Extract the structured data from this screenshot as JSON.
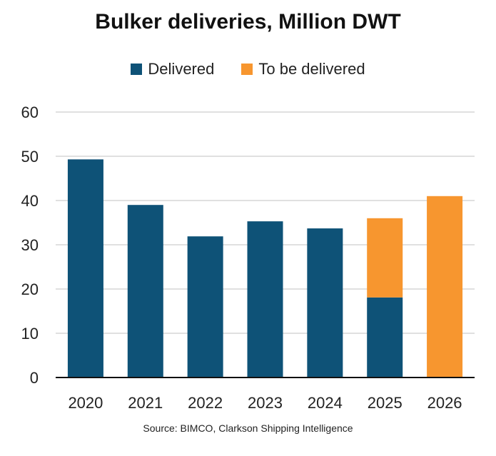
{
  "chart_data": {
    "type": "bar",
    "stacked": true,
    "title": "Bulker deliveries, Million DWT",
    "categories": [
      "2020",
      "2021",
      "2022",
      "2023",
      "2024",
      "2025",
      "2026"
    ],
    "series": [
      {
        "name": "Delivered",
        "color": "#0e5277",
        "values": [
          49.3,
          39.0,
          31.9,
          35.3,
          33.7,
          18.1,
          0
        ]
      },
      {
        "name": "To be delivered",
        "color": "#f7962f",
        "values": [
          0,
          0,
          0,
          0,
          0,
          17.9,
          41.0
        ]
      }
    ],
    "ylim": [
      0,
      60
    ],
    "yticks": [
      0,
      10,
      20,
      30,
      40,
      50,
      60
    ],
    "grid": true,
    "legend": "top",
    "source": "Source: BIMCO, Clarkson Shipping Intelligence"
  }
}
